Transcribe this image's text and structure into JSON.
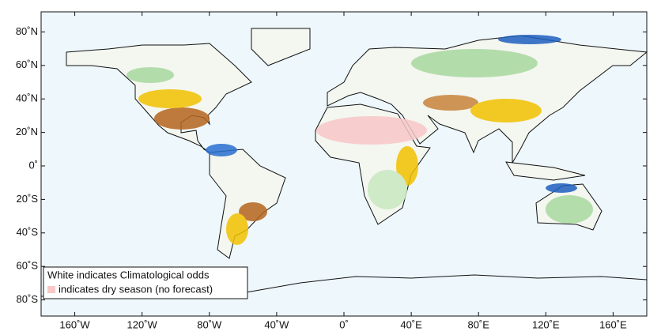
{
  "map": {
    "lon_ticks": [
      {
        "value": -160,
        "label": "160˚W"
      },
      {
        "value": -120,
        "label": "120˚W"
      },
      {
        "value": -80,
        "label": "80˚W"
      },
      {
        "value": -40,
        "label": "40˚W"
      },
      {
        "value": 0,
        "label": "0˚"
      },
      {
        "value": 40,
        "label": "40˚E"
      },
      {
        "value": 80,
        "label": "80˚E"
      },
      {
        "value": 120,
        "label": "120˚E"
      },
      {
        "value": 160,
        "label": "160˚E"
      }
    ],
    "lat_ticks": [
      {
        "value": 80,
        "label": "80˚N"
      },
      {
        "value": 60,
        "label": "60˚N"
      },
      {
        "value": 40,
        "label": "40˚N"
      },
      {
        "value": 20,
        "label": "20˚N"
      },
      {
        "value": 0,
        "label": "0˚"
      },
      {
        "value": -20,
        "label": "20˚S"
      },
      {
        "value": -40,
        "label": "40˚S"
      },
      {
        "value": -60,
        "label": "60˚S"
      },
      {
        "value": -80,
        "label": "80˚S"
      }
    ],
    "legend": {
      "line1": "White indicates Climatological odds",
      "line2": "indicates dry season (no forecast)"
    }
  }
}
